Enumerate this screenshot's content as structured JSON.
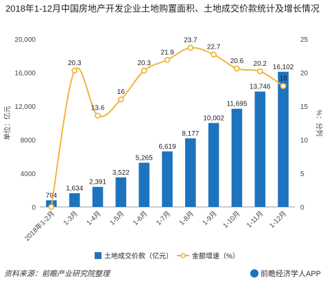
{
  "title": "2018年1-12月中国房地产开发企业土地购置面积、土地成交价款统计及增长情况",
  "source": "资料来源：前瞻产业研究院整理",
  "brand": "前瞻经济学人APP",
  "chart_data": {
    "type": "bar+line",
    "categories": [
      "2018年1-2月",
      "1-3月",
      "1-4月",
      "1-5月",
      "1-6月",
      "1-7月",
      "1-8月",
      "1-9月",
      "1-10月",
      "1-11月",
      "1-12月"
    ],
    "series": [
      {
        "name": "土地成交价款（亿元）",
        "type": "bar",
        "axis": "left",
        "values": [
          794,
          1634,
          2391,
          3522,
          5265,
          6619,
          8177,
          10002,
          11695,
          13746,
          16102
        ],
        "labels": [
          "794",
          "1,634",
          "2,391",
          "3,522",
          "5,265",
          "6,619",
          "8,177",
          "10,002",
          "11,695",
          "13,746",
          "16,102"
        ],
        "color": "#1e73be"
      },
      {
        "name": "金额增速（%）",
        "type": "line",
        "axis": "right",
        "values": [
          0,
          20.3,
          13.6,
          16,
          20.3,
          21.9,
          23.7,
          22.7,
          20.6,
          20.2,
          18
        ],
        "labels": [
          "0",
          "20.3",
          "13.6",
          "16",
          "20.3",
          "21.9",
          "23.7",
          "22.7",
          "20.6",
          "20.2",
          "18"
        ],
        "color": "#f0b43c"
      }
    ],
    "ylabel_left": "单位：亿元",
    "ylabel_right": "%：分列",
    "ylim_left": [
      0,
      20000
    ],
    "yticks_left": [
      0,
      4000,
      8000,
      12000,
      16000,
      20000
    ],
    "yticks_left_labels": [
      "0",
      "4000",
      "8000",
      "12,000",
      "16,000",
      "20,000"
    ],
    "ylim_right": [
      0,
      25
    ],
    "yticks_right": [
      0,
      5,
      10,
      15,
      20,
      25
    ],
    "legend": [
      "土地成交价款（亿元）",
      "金额增速（%）"
    ],
    "legend_position": "bottom",
    "grid": false
  }
}
